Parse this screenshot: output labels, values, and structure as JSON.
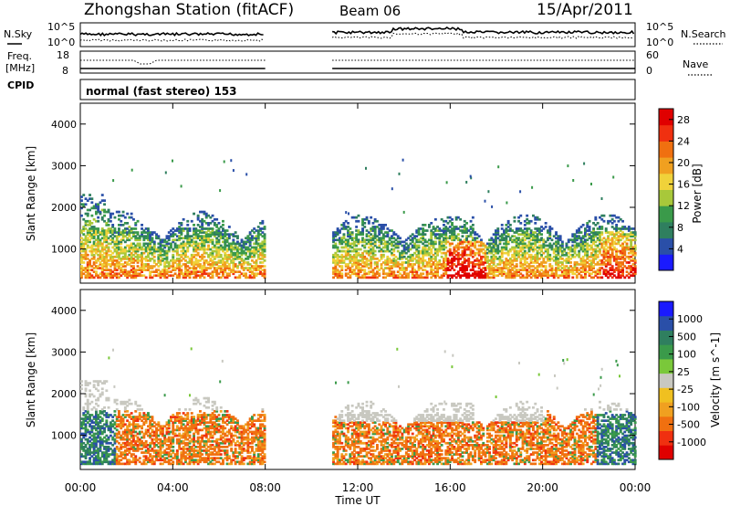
{
  "header": {
    "station": "Zhongshan Station (fitACF)",
    "beam": "Beam 06",
    "date": "15/Apr/2011"
  },
  "left_labels": {
    "nsky": "N.Sky",
    "freq_line1": "Freq.",
    "freq_line2": "[MHz]",
    "cpid": "CPID"
  },
  "right_labels": {
    "nsearch": "N.Search",
    "nave": "Nave"
  },
  "ticks": {
    "noise_left_top": "10^5",
    "noise_left_bottom": "10^0",
    "noise_right_top": "10^5",
    "noise_right_bottom": "10^0",
    "freq_left_top": "18",
    "freq_left_bottom": "8",
    "nave_right_top": "60",
    "nave_right_bottom": "0"
  },
  "cpid_text": "normal (fast stereo) 153",
  "colors": {
    "power_scale": [
      "#1a1aff",
      "#2a4fa8",
      "#2f7f5f",
      "#3a9a4a",
      "#a8c83a",
      "#f0d23a",
      "#f0a020",
      "#f07010",
      "#f03010",
      "#e00000"
    ],
    "velocity_scale": [
      "#e00000",
      "#f03010",
      "#f07010",
      "#f0a020",
      "#f0c020",
      "#c8c8c0",
      "#7ac83a",
      "#3a9a4a",
      "#2f7f5f",
      "#2a4fa8",
      "#1a1aff"
    ]
  },
  "chart_data": [
    {
      "type": "heatmap",
      "title": "",
      "xlabel": "Time UT",
      "ylabel": "Slant Range [km]",
      "x_ticks": [
        "00:00",
        "04:00",
        "08:00",
        "12:00",
        "16:00",
        "20:00",
        "00:00"
      ],
      "xlim": [
        0,
        24
      ],
      "y_ticks": [
        1000,
        2000,
        3000,
        4000
      ],
      "ylim": [
        180,
        4500
      ],
      "colorbar": {
        "label": "Power [dB]",
        "ticks": [
          4,
          8,
          12,
          16,
          20,
          24,
          28
        ],
        "range": [
          0,
          30
        ]
      },
      "data_gaps_hours": [
        [
          8.0,
          10.9
        ]
      ],
      "echo_regions": [
        {
          "t0": 0.0,
          "t1": 8.0,
          "r0": 300,
          "r1": 2300,
          "peak_db": 24
        },
        {
          "t0": 10.9,
          "t1": 24.0,
          "r0": 300,
          "r1": 2200,
          "peak_db": 30
        }
      ]
    },
    {
      "type": "heatmap",
      "title": "",
      "xlabel": "Time UT",
      "ylabel": "Slant Range [km]",
      "x_ticks": [
        "00:00",
        "04:00",
        "08:00",
        "12:00",
        "16:00",
        "20:00",
        "00:00"
      ],
      "xlim": [
        0,
        24
      ],
      "y_ticks": [
        1000,
        2000,
        3000,
        4000
      ],
      "ylim": [
        180,
        4500
      ],
      "colorbar": {
        "label": "Velocity [m s^-1]",
        "ticks": [
          1000,
          500,
          100,
          25,
          -25,
          -100,
          -500,
          -1000
        ]
      },
      "data_gaps_hours": [
        [
          8.0,
          10.9
        ]
      ],
      "echo_regions": [
        {
          "t0": 0.0,
          "t1": 8.0,
          "r0": 300,
          "r1": 2300,
          "dominant_velocity": "-500 to -100"
        },
        {
          "t0": 10.9,
          "t1": 24.0,
          "r0": 300,
          "r1": 2200,
          "dominant_velocity": "-500 to 25"
        }
      ]
    }
  ]
}
